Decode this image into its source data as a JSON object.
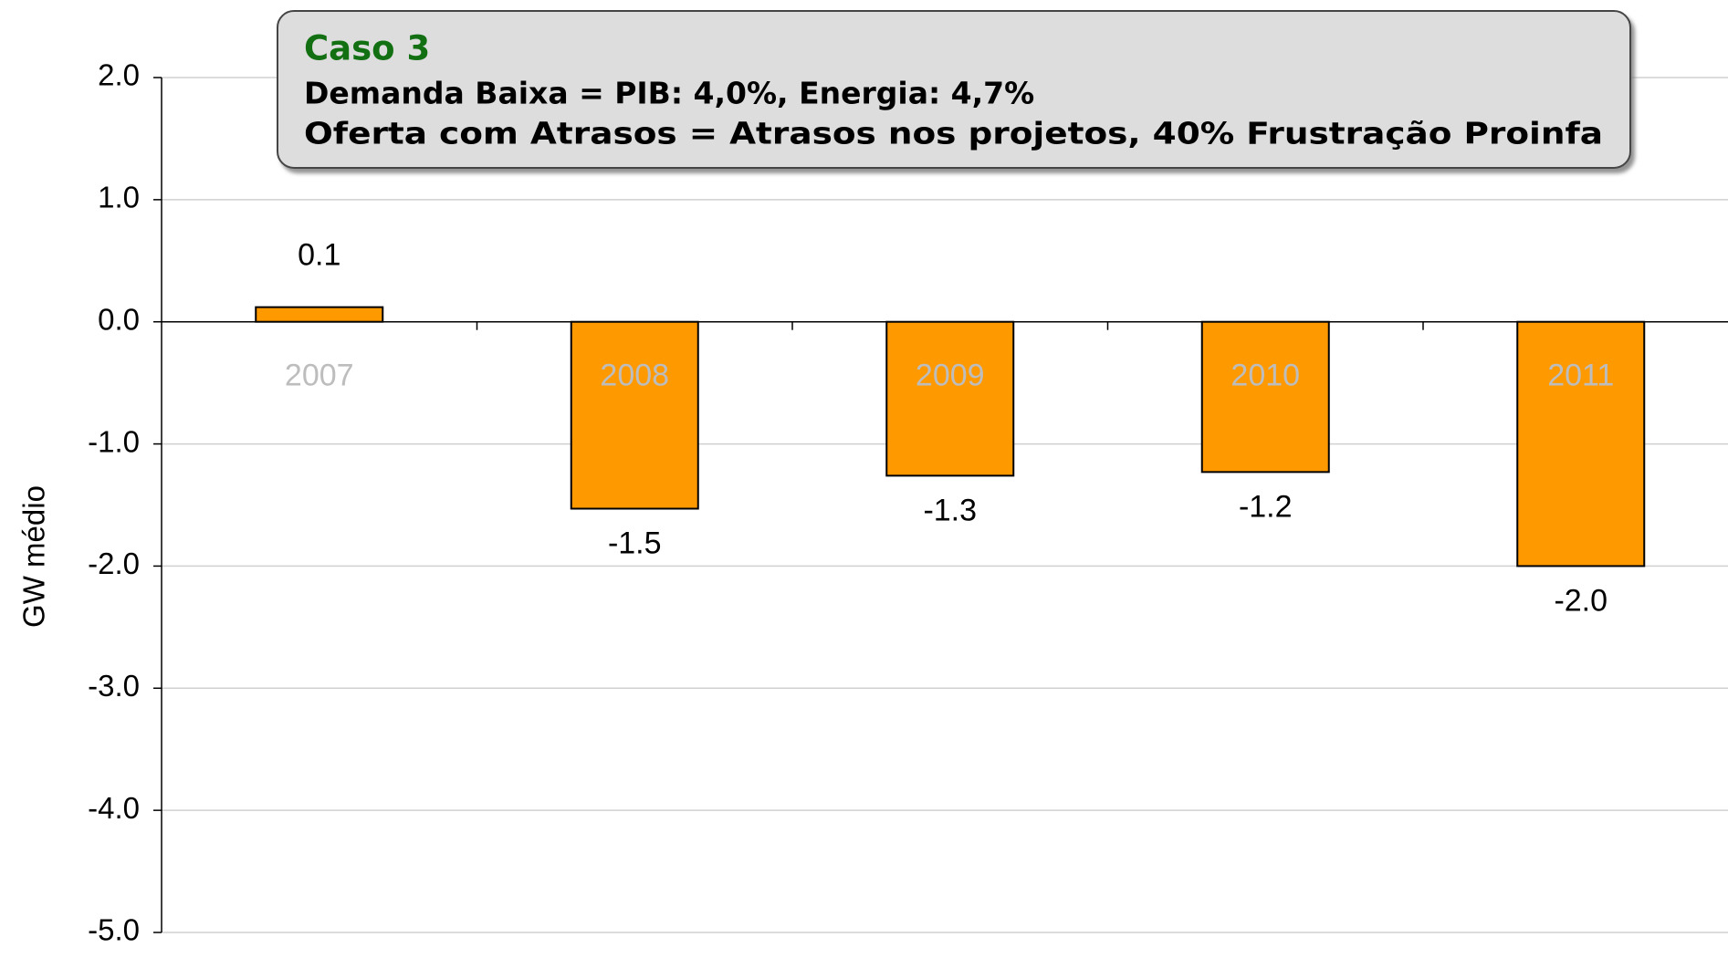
{
  "chart_data": {
    "type": "bar",
    "annotation": {
      "title": "Caso 3",
      "lines": [
        "Demanda Baixa = PIB: 4,0%, Energia: 4,7%",
        "Oferta com Atrasos = Atrasos nos projetos, 40% Frustração Proinfa"
      ]
    },
    "y_label": "GW médio",
    "categories": [
      "2007",
      "2008",
      "2009",
      "2010",
      "2011"
    ],
    "values": [
      0.12,
      -1.53,
      -1.26,
      -1.23,
      -2.0
    ],
    "value_labels": [
      "0.1",
      "-1.5",
      "-1.3",
      "-1.2",
      "-2.0"
    ],
    "color": "#ff9900",
    "ylim": [
      -5,
      2
    ],
    "yticks": [
      {
        "value": 2,
        "label": "2.0"
      },
      {
        "value": 1,
        "label": "1.0"
      },
      {
        "value": 0,
        "label": "0.0"
      },
      {
        "value": -1,
        "label": "-1.0"
      },
      {
        "value": -2,
        "label": "-2.0"
      },
      {
        "value": -3,
        "label": "-3.0"
      },
      {
        "value": -4,
        "label": "-4.0"
      },
      {
        "value": -5,
        "label": "-5.0"
      }
    ],
    "grid": true
  }
}
